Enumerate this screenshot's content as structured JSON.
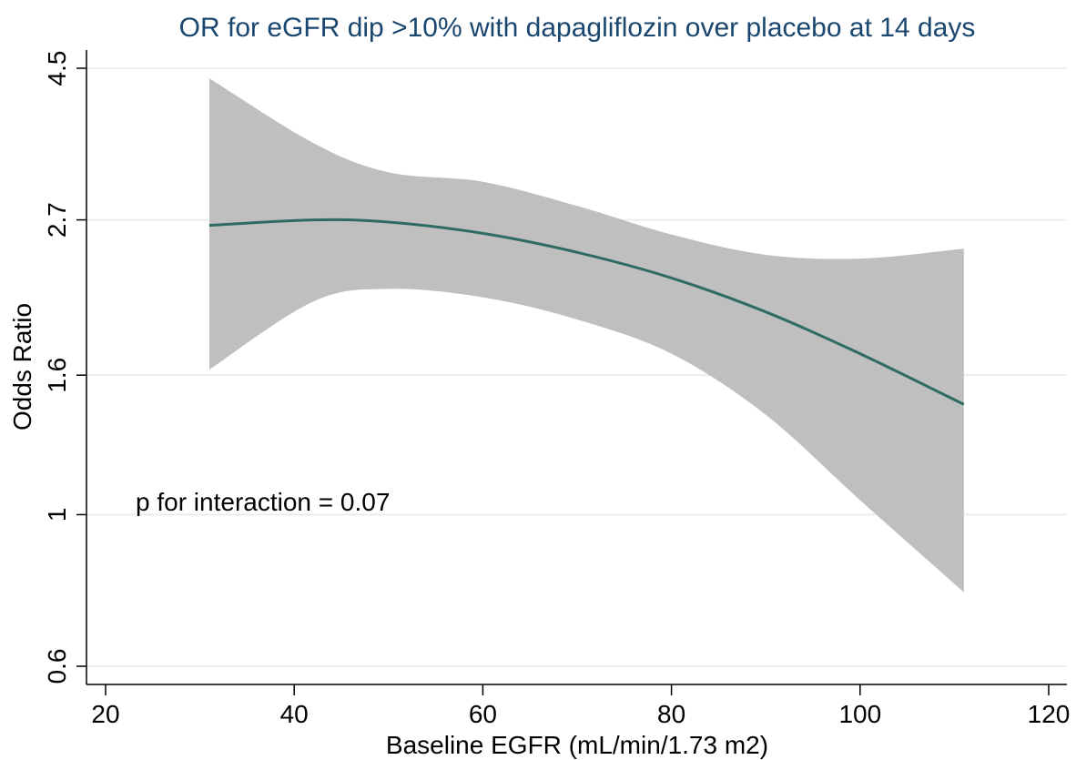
{
  "chart_data": {
    "type": "line",
    "title": "OR for eGFR dip >10% with dapagliflozin over placebo at 14 days",
    "xlabel": "Baseline EGFR (mL/min/1.73 m2)",
    "ylabel": "Odds Ratio",
    "xlim": [
      20,
      120
    ],
    "ylim": [
      0.6,
      4.5
    ],
    "y_scale": "log",
    "x_ticks": [
      20,
      40,
      60,
      80,
      100,
      120
    ],
    "x_tick_labels": [
      "20",
      "40",
      "60",
      "80",
      "100",
      "120"
    ],
    "y_ticks": [
      0.6,
      1,
      1.6,
      2.7,
      4.5
    ],
    "y_tick_labels": [
      "0.6",
      "1",
      "1.6",
      "2.7",
      "4.5"
    ],
    "grid": "horizontal",
    "legend": "none",
    "annotation": "p for interaction = 0.07",
    "colors": {
      "line": "#2e6b62",
      "band": "#bfbfbf",
      "grid": "#e6eef0",
      "title": "#1a476f"
    },
    "series": [
      {
        "x": [
          31,
          42,
          50,
          60,
          70,
          80,
          90,
          100,
          111
        ],
        "y": [
          2.65,
          2.7,
          2.68,
          2.58,
          2.42,
          2.22,
          1.98,
          1.72,
          1.45
        ],
        "lower": [
          1.63,
          2.05,
          2.14,
          2.08,
          1.93,
          1.72,
          1.4,
          1.05,
          0.77
        ],
        "upper": [
          4.35,
          3.5,
          3.17,
          3.07,
          2.83,
          2.57,
          2.4,
          2.37,
          2.45
        ]
      }
    ]
  }
}
